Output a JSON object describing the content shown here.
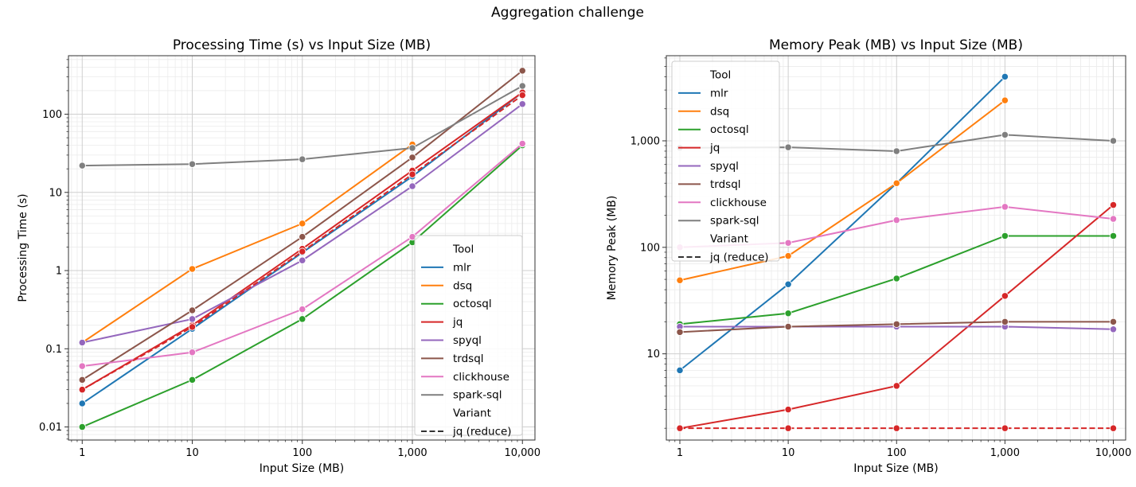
{
  "figure": {
    "suptitle": "Aggregation challenge"
  },
  "chart_data": [
    {
      "type": "line",
      "title": "Processing Time (s) vs Input Size (MB)",
      "xlabel": "Input Size (MB)",
      "ylabel": "Processing Time (s)",
      "xscale": "log",
      "yscale": "log",
      "x": [
        1,
        10,
        100,
        1000,
        10000
      ],
      "xticklabels": [
        "1",
        "10",
        "100",
        "1,000",
        "10,000"
      ],
      "yticks": [
        0.01,
        0.1,
        1,
        10,
        100
      ],
      "yticklabels": [
        "0.01",
        "0.1",
        "1",
        "10",
        "100"
      ],
      "grid": true,
      "legend": {
        "placement": "lower-right",
        "hue_title": "Tool",
        "style_title": "Variant",
        "style_entries": [
          "jq (reduce)"
        ]
      },
      "series": [
        {
          "name": "mlr",
          "color": "#1f77b4",
          "dashed": false,
          "values": [
            0.02,
            0.18,
            1.7,
            16,
            190
          ]
        },
        {
          "name": "dsq",
          "color": "#ff7f0e",
          "dashed": false,
          "values": [
            0.12,
            1.05,
            4,
            41,
            null
          ]
        },
        {
          "name": "octosql",
          "color": "#2ca02c",
          "dashed": false,
          "values": [
            0.01,
            0.04,
            0.24,
            2.3,
            40
          ]
        },
        {
          "name": "jq",
          "color": "#d62728",
          "dashed": false,
          "values": [
            0.03,
            0.2,
            1.9,
            19,
            190
          ]
        },
        {
          "name": "spyql",
          "color": "#9467bd",
          "dashed": false,
          "values": [
            0.12,
            0.24,
            1.35,
            12,
            135
          ]
        },
        {
          "name": "trdsql",
          "color": "#8c564b",
          "dashed": false,
          "values": [
            0.04,
            0.31,
            2.7,
            28,
            360
          ]
        },
        {
          "name": "clickhouse",
          "color": "#e377c2",
          "dashed": false,
          "values": [
            0.06,
            0.09,
            0.32,
            2.7,
            42
          ]
        },
        {
          "name": "spark-sql",
          "color": "#7f7f7f",
          "dashed": false,
          "values": [
            22,
            23,
            26.5,
            37,
            230
          ]
        },
        {
          "name": "jq (reduce)",
          "color": "#d62728",
          "dashed": true,
          "values": [
            0.03,
            0.19,
            1.75,
            17,
            175
          ]
        }
      ]
    },
    {
      "type": "line",
      "title": "Memory Peak (MB) vs Input Size (MB)",
      "xlabel": "Input Size (MB)",
      "ylabel": "Memory Peak (MB)",
      "xscale": "log",
      "yscale": "log",
      "x": [
        1,
        10,
        100,
        1000,
        10000
      ],
      "xticklabels": [
        "1",
        "10",
        "100",
        "1,000",
        "10,000"
      ],
      "yticks": [
        10,
        100,
        1000
      ],
      "yticklabels": [
        "10",
        "100",
        "1,000"
      ],
      "grid": true,
      "legend": {
        "placement": "upper-left",
        "hue_title": "Tool",
        "style_title": "Variant",
        "style_entries": [
          "jq (reduce)"
        ]
      },
      "series": [
        {
          "name": "mlr",
          "color": "#1f77b4",
          "dashed": false,
          "values": [
            7,
            45,
            400,
            4000,
            null
          ]
        },
        {
          "name": "dsq",
          "color": "#ff7f0e",
          "dashed": false,
          "values": [
            49,
            83,
            400,
            2400,
            null
          ]
        },
        {
          "name": "octosql",
          "color": "#2ca02c",
          "dashed": false,
          "values": [
            19,
            24,
            51,
            128,
            128
          ]
        },
        {
          "name": "jq",
          "color": "#d62728",
          "dashed": false,
          "values": [
            2,
            3,
            5,
            35,
            250
          ]
        },
        {
          "name": "spyql",
          "color": "#9467bd",
          "dashed": false,
          "values": [
            18,
            18,
            18,
            18,
            17
          ]
        },
        {
          "name": "trdsql",
          "color": "#8c564b",
          "dashed": false,
          "values": [
            16,
            18,
            19,
            20,
            20
          ]
        },
        {
          "name": "clickhouse",
          "color": "#e377c2",
          "dashed": false,
          "values": [
            100,
            110,
            180,
            240,
            185
          ]
        },
        {
          "name": "spark-sql",
          "color": "#7f7f7f",
          "dashed": false,
          "values": [
            860,
            870,
            800,
            1140,
            1000
          ]
        },
        {
          "name": "jq (reduce)",
          "color": "#d62728",
          "dashed": true,
          "values": [
            2,
            2,
            2,
            2,
            2
          ]
        }
      ]
    }
  ]
}
